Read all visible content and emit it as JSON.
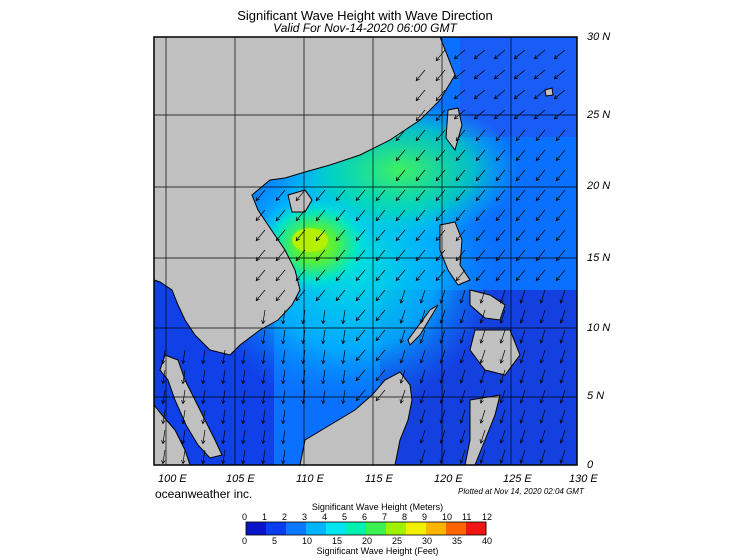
{
  "title": "Significant Wave Height with Wave Direction",
  "subtitle": "Valid For Nov-14-2020 06:00 GMT",
  "credit": "oceanweather inc.",
  "plotted": "Plotted at Nov 14, 2020 02:04 GMT",
  "lon_labels": [
    "100 E",
    "105 E",
    "110 E",
    "115 E",
    "120 E",
    "125 E",
    "130 E"
  ],
  "lat_labels": [
    "30 N",
    "25 N",
    "20 N",
    "15 N",
    "10 N",
    "5 N",
    "0"
  ],
  "colorbar": {
    "meters_title": "Significant Wave Height (Meters)",
    "feet_title": "Significant Wave Height (Feet)",
    "meters_ticks": [
      "0",
      "1",
      "2",
      "3",
      "4",
      "5",
      "6",
      "7",
      "8",
      "9",
      "10",
      "11",
      "12"
    ],
    "feet_ticks": [
      "0",
      "5",
      "10",
      "15",
      "20",
      "25",
      "30",
      "35",
      "40"
    ],
    "colors": [
      "#0a14c8",
      "#0a3cf0",
      "#0a78ff",
      "#00b4ff",
      "#00e6f0",
      "#00f0b4",
      "#3cf050",
      "#a0f000",
      "#f0f000",
      "#ffb400",
      "#ff6400",
      "#f01414"
    ]
  },
  "colors": {
    "land": "#c0c0c0",
    "low_sea": "#1a50ee",
    "mid_sea": "#00c8f8",
    "high_sea": "#50f050"
  }
}
